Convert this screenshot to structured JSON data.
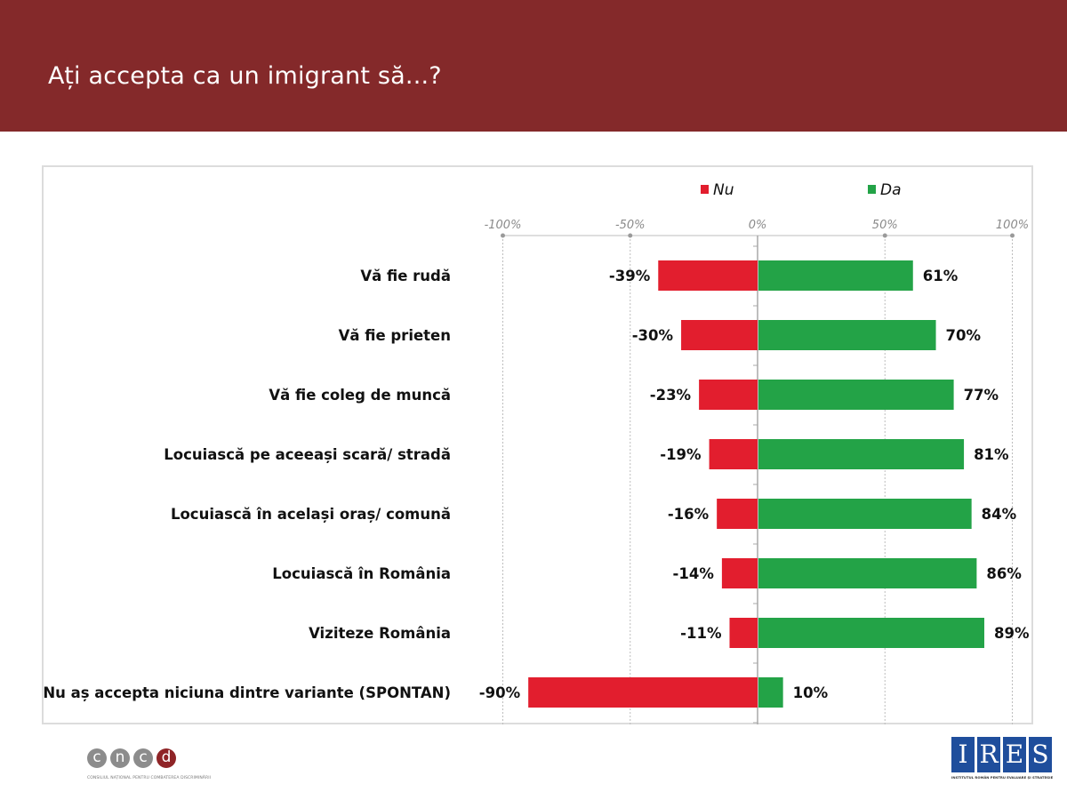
{
  "header": {
    "title": "Ați accepta ca un imigrant să...?"
  },
  "colors": {
    "header_bg": "#84292a",
    "nu": "#e21e2e",
    "da": "#23a347",
    "grid": "#bdbdbd"
  },
  "chart_data": {
    "type": "bar",
    "orientation": "horizontal",
    "stacked": "diverging",
    "title": "Ați accepta ca un imigrant să...?",
    "categories": [
      "Vă fie rudă",
      "Vă fie prieten",
      "Vă fie coleg de muncă",
      "Locuiască pe aceeași scară/ stradă",
      "Locuiască în același oraș/ comună",
      "Locuiască în România",
      "Viziteze România",
      "Nu aș accepta niciuna dintre variante (SPONTAN)"
    ],
    "series": [
      {
        "name": "Nu",
        "color": "#e21e2e",
        "values": [
          -39,
          -30,
          -23,
          -19,
          -16,
          -14,
          -11,
          -90
        ],
        "labels": [
          "-39%",
          "-30%",
          "-23%",
          "-19%",
          "-16%",
          "-14%",
          "-11%",
          "-90%"
        ]
      },
      {
        "name": "Da",
        "color": "#23a347",
        "values": [
          61,
          70,
          77,
          81,
          84,
          86,
          89,
          10
        ],
        "labels": [
          "61%",
          "70%",
          "77%",
          "81%",
          "84%",
          "86%",
          "89%",
          "10%"
        ]
      }
    ],
    "xlim": [
      -100,
      100
    ],
    "xticks": [
      -100,
      -50,
      0,
      50,
      100
    ],
    "xtick_labels": [
      "-100%",
      "-50%",
      "0%",
      "50%",
      "100%"
    ],
    "xaxis_position": "top",
    "grid": true,
    "legend": {
      "position": "top",
      "entries": [
        "Nu",
        "Da"
      ]
    }
  },
  "logos": {
    "left": {
      "letters": [
        "c",
        "n",
        "c",
        "d"
      ],
      "caption": "CONSILIUL NAȚIONAL PENTRU COMBATEREA DISCRIMINĂRII"
    },
    "right": {
      "letters": [
        "I",
        "R",
        "E",
        "S"
      ],
      "caption": "INSTITUTUL ROMÂN PENTRU EVALUARE ȘI STRATEGIE"
    }
  }
}
